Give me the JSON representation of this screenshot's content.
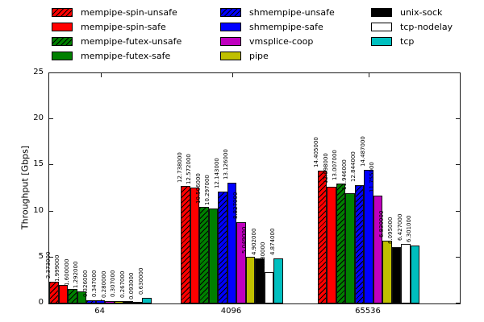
{
  "figure": {
    "background": "#ffffff"
  },
  "chart_data": {
    "type": "bar",
    "title": "",
    "xlabel": "",
    "ylabel": "Throughput [Gbps]",
    "ylim": [
      0,
      25
    ],
    "yticks": [
      0,
      5,
      10,
      15,
      20,
      25
    ],
    "categories": [
      "64",
      "4096",
      "65536"
    ],
    "grid": false,
    "legend_position": "top",
    "legend_columns": 3,
    "value_label_decimals": 6,
    "hatch_color": "#000000",
    "bar_edge_color": "#000000",
    "series": [
      {
        "name": "mempipe-spin-unsafe",
        "color": "#ff0000",
        "hatch": true,
        "values": [
          2.373,
          12.738,
          14.405
        ]
      },
      {
        "name": "mempipe-spin-safe",
        "color": "#ff0000",
        "hatch": false,
        "values": [
          1.999,
          12.572,
          12.698
        ]
      },
      {
        "name": "mempipe-futex-unsafe",
        "color": "#008000",
        "hatch": true,
        "values": [
          1.6,
          10.506,
          13.007
        ]
      },
      {
        "name": "mempipe-futex-safe",
        "color": "#008000",
        "hatch": false,
        "values": [
          1.292,
          10.297,
          11.946
        ]
      },
      {
        "name": "shmempipe-unsafe",
        "color": "#0000ff",
        "hatch": true,
        "values": [
          0.326,
          12.143,
          12.844
        ]
      },
      {
        "name": "shmempipe-safe",
        "color": "#0000ff",
        "hatch": false,
        "values": [
          0.347,
          13.126,
          14.487
        ]
      },
      {
        "name": "vmsplice-coop",
        "color": "#bf00bf",
        "hatch": false,
        "values": [
          0.28,
          8.827,
          11.755
        ]
      },
      {
        "name": "pipe",
        "color": "#bfbf00",
        "hatch": false,
        "values": [
          0.307,
          5.049,
          6.83
        ]
      },
      {
        "name": "unix-sock",
        "color": "#000000",
        "hatch": false,
        "values": [
          0.267,
          4.902,
          6.095
        ]
      },
      {
        "name": "tcp-nodelay",
        "color": "#ffffff",
        "hatch": false,
        "values": [
          0.093,
          3.38,
          6.427
        ]
      },
      {
        "name": "tcp",
        "color": "#00bfbf",
        "hatch": false,
        "values": [
          0.63,
          4.874,
          6.301
        ]
      }
    ]
  }
}
